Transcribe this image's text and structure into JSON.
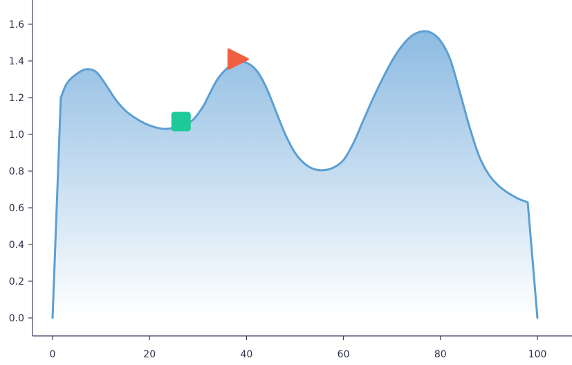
{
  "chart_data": {
    "type": "area",
    "title": "",
    "xlabel": "",
    "ylabel": "",
    "xlim": [
      0,
      100
    ],
    "ylim": [
      0,
      1.6
    ],
    "grid": false,
    "x_ticks": [
      "0",
      "20",
      "40",
      "60",
      "80",
      "100"
    ],
    "y_ticks": [
      "0.0",
      "0.2",
      "0.4",
      "0.6",
      "0.8",
      "1.0",
      "1.2",
      "1.4",
      "1.6"
    ],
    "series": [
      {
        "color": "#5b9fd3",
        "fill_top": "#8dbbe2",
        "fill_bottom": "#ffffff",
        "points": [
          [
            0,
            0.0
          ],
          [
            1.7,
            1.2
          ],
          [
            3,
            1.28
          ],
          [
            5,
            1.33
          ],
          [
            7,
            1.355
          ],
          [
            9,
            1.34
          ],
          [
            11,
            1.27
          ],
          [
            13,
            1.19
          ],
          [
            15,
            1.13
          ],
          [
            17,
            1.09
          ],
          [
            19,
            1.06
          ],
          [
            21,
            1.04
          ],
          [
            23,
            1.03
          ],
          [
            25,
            1.035
          ],
          [
            27,
            1.05
          ],
          [
            29,
            1.08
          ],
          [
            31,
            1.15
          ],
          [
            32,
            1.2
          ],
          [
            34,
            1.3
          ],
          [
            36,
            1.36
          ],
          [
            38,
            1.395
          ],
          [
            40,
            1.39
          ],
          [
            42,
            1.35
          ],
          [
            44,
            1.26
          ],
          [
            46,
            1.13
          ],
          [
            48,
            1.0
          ],
          [
            50,
            0.9
          ],
          [
            52,
            0.84
          ],
          [
            54,
            0.81
          ],
          [
            56,
            0.805
          ],
          [
            58,
            0.82
          ],
          [
            60,
            0.86
          ],
          [
            62,
            0.95
          ],
          [
            64,
            1.07
          ],
          [
            66,
            1.19
          ],
          [
            68,
            1.3
          ],
          [
            70,
            1.4
          ],
          [
            72,
            1.48
          ],
          [
            74,
            1.535
          ],
          [
            76,
            1.56
          ],
          [
            78,
            1.555
          ],
          [
            80,
            1.51
          ],
          [
            82,
            1.41
          ],
          [
            84,
            1.23
          ],
          [
            86,
            1.04
          ],
          [
            88,
            0.88
          ],
          [
            90,
            0.78
          ],
          [
            92,
            0.72
          ],
          [
            94,
            0.68
          ],
          [
            96,
            0.65
          ],
          [
            98,
            0.63
          ],
          [
            100,
            0.0
          ]
        ]
      }
    ],
    "markers": [
      {
        "shape": "square",
        "x": 26.5,
        "y": 1.07,
        "color": "#1ec99a"
      },
      {
        "shape": "triangle",
        "x": 38,
        "y": 1.41,
        "color": "#f06040"
      }
    ]
  }
}
